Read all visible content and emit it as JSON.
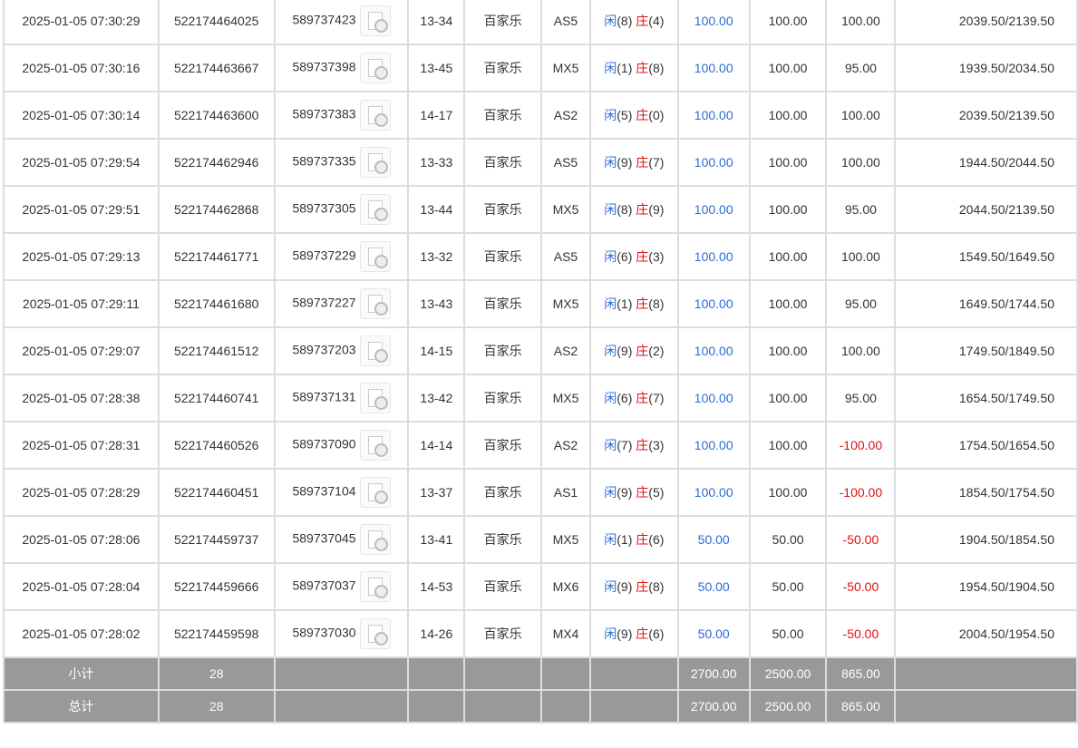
{
  "rows": [
    [
      "2025-01-05 07:30:29",
      "522174464025",
      "589737423",
      "13-34",
      "百家乐",
      "AS5",
      "8",
      "4",
      "100.00",
      "100.00",
      "100.00",
      "2039.50/2139.50"
    ],
    [
      "2025-01-05 07:30:16",
      "522174463667",
      "589737398",
      "13-45",
      "百家乐",
      "MX5",
      "1",
      "8",
      "100.00",
      "100.00",
      "95.00",
      "1939.50/2034.50"
    ],
    [
      "2025-01-05 07:30:14",
      "522174463600",
      "589737383",
      "14-17",
      "百家乐",
      "AS2",
      "5",
      "0",
      "100.00",
      "100.00",
      "100.00",
      "2039.50/2139.50"
    ],
    [
      "2025-01-05 07:29:54",
      "522174462946",
      "589737335",
      "13-33",
      "百家乐",
      "AS5",
      "9",
      "7",
      "100.00",
      "100.00",
      "100.00",
      "1944.50/2044.50"
    ],
    [
      "2025-01-05 07:29:51",
      "522174462868",
      "589737305",
      "13-44",
      "百家乐",
      "MX5",
      "8",
      "9",
      "100.00",
      "100.00",
      "95.00",
      "2044.50/2139.50"
    ],
    [
      "2025-01-05 07:29:13",
      "522174461771",
      "589737229",
      "13-32",
      "百家乐",
      "AS5",
      "6",
      "3",
      "100.00",
      "100.00",
      "100.00",
      "1549.50/1649.50"
    ],
    [
      "2025-01-05 07:29:11",
      "522174461680",
      "589737227",
      "13-43",
      "百家乐",
      "MX5",
      "1",
      "8",
      "100.00",
      "100.00",
      "95.00",
      "1649.50/1744.50"
    ],
    [
      "2025-01-05 07:29:07",
      "522174461512",
      "589737203",
      "14-15",
      "百家乐",
      "AS2",
      "9",
      "2",
      "100.00",
      "100.00",
      "100.00",
      "1749.50/1849.50"
    ],
    [
      "2025-01-05 07:28:38",
      "522174460741",
      "589737131",
      "13-42",
      "百家乐",
      "MX5",
      "6",
      "7",
      "100.00",
      "100.00",
      "95.00",
      "1654.50/1749.50"
    ],
    [
      "2025-01-05 07:28:31",
      "522174460526",
      "589737090",
      "14-14",
      "百家乐",
      "AS2",
      "7",
      "3",
      "100.00",
      "100.00",
      "-100.00",
      "1754.50/1654.50"
    ],
    [
      "2025-01-05 07:28:29",
      "522174460451",
      "589737104",
      "13-37",
      "百家乐",
      "AS1",
      "9",
      "5",
      "100.00",
      "100.00",
      "-100.00",
      "1854.50/1754.50"
    ],
    [
      "2025-01-05 07:28:06",
      "522174459737",
      "589737045",
      "13-41",
      "百家乐",
      "MX5",
      "1",
      "6",
      "50.00",
      "50.00",
      "-50.00",
      "1904.50/1854.50"
    ],
    [
      "2025-01-05 07:28:04",
      "522174459666",
      "589737037",
      "14-53",
      "百家乐",
      "MX6",
      "9",
      "8",
      "50.00",
      "50.00",
      "-50.00",
      "1954.50/1904.50"
    ],
    [
      "2025-01-05 07:28:02",
      "522174459598",
      "589737030",
      "14-26",
      "百家乐",
      "MX4",
      "9",
      "6",
      "50.00",
      "50.00",
      "-50.00",
      "2004.50/1954.50"
    ]
  ],
  "player_label": "闲",
  "banker_label": "庄",
  "subtotal": {
    "label": "小计",
    "count": "28",
    "bet": "2700.00",
    "valid": "2500.00",
    "win": "865.00"
  },
  "total": {
    "label": "总计",
    "count": "28",
    "bet": "2700.00",
    "valid": "2500.00",
    "win": "865.00"
  },
  "colors": {
    "blue": "#2a6bd6",
    "red": "#e01010",
    "summary_bg": "#999999"
  }
}
